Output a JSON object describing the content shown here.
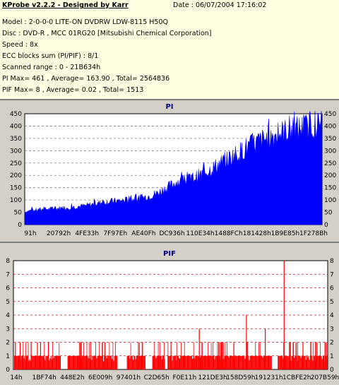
{
  "info": {
    "title": "KProbe v2.2.2 - Designed by Karr",
    "date": "Date : 06/07/2004 17:16:02",
    "model": "Model : 2-0-0-0 LITE-ON DVDRW LDW-8115   H50Q",
    "disc": "Disc : DVD-R , MCC 01RG20   [Mitsubishi Chemical Corporation]",
    "speed": "Speed : 8x",
    "ecc": "ECC blocks sum (PI/PIF) : 8/1",
    "range": "Scanned range : 0 - 21B634h",
    "pi_stats": "PI Max= 461 , Average= 163.90 , Total= 2564836",
    "pif_stats": "PIF Max= 8 , Average= 0.02 , Total= 1513"
  },
  "colors": {
    "info_bg": "#ffffe1",
    "plot_bg": "#ffffff",
    "pi_bar": "#0000ff",
    "pif_bar": "#ff0000",
    "pi_grid": "#808080",
    "pif_grid": "#ff0000"
  },
  "chart_data": [
    {
      "type": "area",
      "title": "PI",
      "xlabel": "",
      "ylabel": "",
      "ylim": [
        0,
        450
      ],
      "yticks": [
        "0",
        "50",
        "100",
        "150",
        "200",
        "250",
        "300",
        "350",
        "400",
        "450"
      ],
      "xticks": [
        "91h",
        "20792h",
        "4FE33h",
        "7F97Eh",
        "AE40Fh",
        "DC936h",
        "110E34h",
        "1488FCh",
        "181428h",
        "1B9E85h",
        "1F278Bh"
      ],
      "x_range": "0 - 21B634h",
      "grid": true,
      "series": [
        {
          "values": [
            55,
            60,
            62,
            65,
            66,
            68,
            70,
            72,
            75,
            78,
            80,
            85,
            90,
            95,
            98,
            100,
            102,
            105,
            108,
            112,
            118,
            125,
            135,
            150,
            165,
            180,
            185,
            190,
            200,
            210,
            225,
            240,
            255,
            270,
            285,
            300,
            315,
            330,
            345,
            355,
            365,
            375,
            385,
            395,
            400,
            405,
            410,
            415,
            420,
            425
          ],
          "max": 461
        }
      ]
    },
    {
      "type": "bar",
      "title": "PIF",
      "xlabel": "",
      "ylabel": "",
      "ylim": [
        0,
        8
      ],
      "yticks": [
        "0",
        "1",
        "2",
        "3",
        "4",
        "5",
        "6",
        "7",
        "8"
      ],
      "xticks": [
        "14h",
        "1BF74h",
        "448E2h",
        "6E009h",
        "97401h",
        "C2D65h",
        "F0E11h",
        "121DE3h",
        "158D59h",
        "191231h",
        "1CBFE2h",
        "207B59h"
      ],
      "grid": true,
      "series": [
        {
          "spikes": [
            {
              "x": 0.005,
              "v": 2
            },
            {
              "x": 0.02,
              "v": 2
            },
            {
              "x": 0.055,
              "v": 2
            },
            {
              "x": 0.075,
              "v": 2
            },
            {
              "x": 0.085,
              "v": 2
            },
            {
              "x": 0.11,
              "v": 2
            },
            {
              "x": 0.29,
              "v": 2
            },
            {
              "x": 0.5,
              "v": 2
            },
            {
              "x": 0.59,
              "v": 3
            },
            {
              "x": 0.66,
              "v": 2
            },
            {
              "x": 0.7,
              "v": 2
            },
            {
              "x": 0.74,
              "v": 4
            },
            {
              "x": 0.8,
              "v": 3
            },
            {
              "x": 0.86,
              "v": 8
            },
            {
              "x": 0.88,
              "v": 2
            },
            {
              "x": 0.92,
              "v": 2
            },
            {
              "x": 0.96,
              "v": 2
            },
            {
              "x": 0.99,
              "v": 2
            }
          ],
          "gaps": [
            [
              0.15,
              0.17
            ],
            [
              0.33,
              0.36
            ],
            [
              0.42,
              0.44
            ],
            [
              0.48,
              0.49
            ],
            [
              0.82,
              0.84
            ]
          ],
          "max": 8
        }
      ]
    }
  ]
}
